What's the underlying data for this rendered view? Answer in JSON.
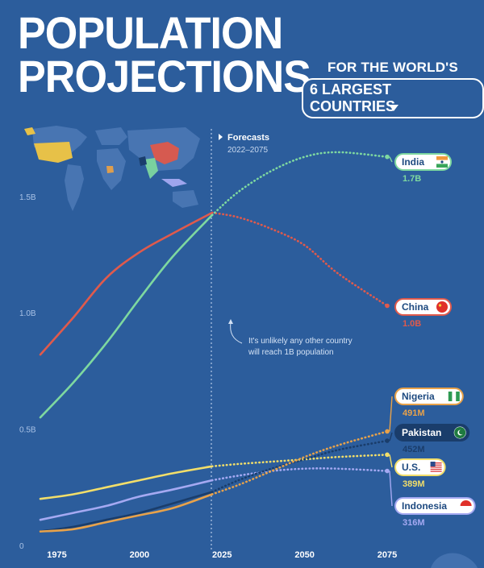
{
  "header": {
    "title_line1": "POPULATION",
    "title_line2": "PROJECTIONS",
    "subtitle_line1": "FOR THE WORLD'S",
    "subtitle_line2": "6 LARGEST COUNTRIES"
  },
  "forecast": {
    "label": "Forecasts",
    "range": "2022–2075"
  },
  "annotation": {
    "line1": "It's unlikely any other country",
    "line2": "will reach 1B population"
  },
  "colors": {
    "background": "#2c5d9c",
    "India": "#7ed8a0",
    "China": "#e05a4c",
    "Nigeria": "#e8a24a",
    "Pakistan": "#1a3d6b",
    "U.S.": "#f2de6a",
    "Indonesia": "#a5a9f2"
  },
  "chart_data": {
    "type": "line",
    "title": "POPULATION PROJECTIONS",
    "subtitle": "FOR THE WORLD'S 6 LARGEST COUNTRIES",
    "xlim": [
      1970,
      2075
    ],
    "ylim": [
      0,
      1.7
    ],
    "x_ticks": [
      1975,
      2000,
      2025,
      2050,
      2075
    ],
    "y_ticks": [
      0,
      0.5,
      1.0,
      1.5
    ],
    "x_tick_labels": [
      "1975",
      "2000",
      "2025",
      "2050",
      "2075"
    ],
    "y_tick_labels": [
      "0",
      "0.5B",
      "1.0B",
      "1.5B"
    ],
    "forecast_start": 2022,
    "series": [
      {
        "name": "India",
        "value_label": "1.7B",
        "flag": "india-flag-icon",
        "x": [
          1970,
          1980,
          1990,
          2000,
          2010,
          2022,
          2030,
          2040,
          2050,
          2060,
          2075
        ],
        "y": [
          0.55,
          0.7,
          0.87,
          1.06,
          1.24,
          1.42,
          1.52,
          1.61,
          1.67,
          1.69,
          1.67
        ]
      },
      {
        "name": "China",
        "value_label": "1.0B",
        "flag": "china-flag-icon",
        "x": [
          1970,
          1980,
          1990,
          2000,
          2010,
          2022,
          2030,
          2040,
          2050,
          2060,
          2075
        ],
        "y": [
          0.82,
          0.98,
          1.15,
          1.26,
          1.34,
          1.43,
          1.41,
          1.36,
          1.29,
          1.17,
          1.03
        ]
      },
      {
        "name": "Nigeria",
        "value_label": "491M",
        "flag": "nigeria-flag-icon",
        "x": [
          1970,
          1980,
          1990,
          2000,
          2010,
          2022,
          2030,
          2040,
          2050,
          2060,
          2075
        ],
        "y": [
          0.06,
          0.07,
          0.1,
          0.13,
          0.16,
          0.22,
          0.26,
          0.32,
          0.38,
          0.43,
          0.49
        ]
      },
      {
        "name": "Pakistan",
        "value_label": "452M",
        "flag": "pakistan-flag-icon",
        "x": [
          1970,
          1980,
          1990,
          2000,
          2010,
          2022,
          2030,
          2040,
          2050,
          2060,
          2075
        ],
        "y": [
          0.06,
          0.08,
          0.11,
          0.14,
          0.18,
          0.23,
          0.28,
          0.33,
          0.37,
          0.41,
          0.45
        ]
      },
      {
        "name": "U.S.",
        "value_label": "389M",
        "flag": "us-flag-icon",
        "x": [
          1970,
          1980,
          1990,
          2000,
          2010,
          2022,
          2030,
          2040,
          2050,
          2060,
          2075
        ],
        "y": [
          0.2,
          0.22,
          0.25,
          0.28,
          0.31,
          0.34,
          0.35,
          0.36,
          0.37,
          0.38,
          0.39
        ]
      },
      {
        "name": "Indonesia",
        "value_label": "316M",
        "flag": "indonesia-flag-icon",
        "x": [
          1970,
          1980,
          1990,
          2000,
          2010,
          2022,
          2030,
          2040,
          2050,
          2060,
          2075
        ],
        "y": [
          0.11,
          0.14,
          0.17,
          0.21,
          0.24,
          0.28,
          0.3,
          0.32,
          0.33,
          0.33,
          0.32
        ]
      }
    ],
    "grid": false,
    "legend": "inline-right"
  }
}
